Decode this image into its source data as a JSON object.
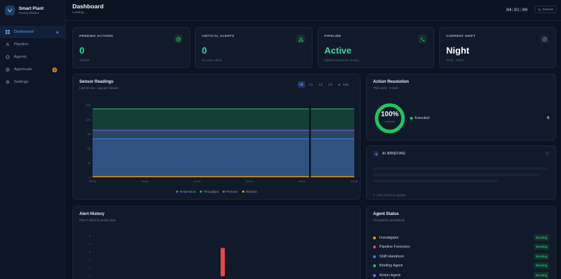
{
  "brand": {
    "name": "Smart Plant",
    "subtitle": "Factory Monitor"
  },
  "nav": [
    {
      "label": "Dashboard",
      "icon": "grid-icon",
      "active": true
    },
    {
      "label": "Pipeline",
      "icon": "pipeline-icon"
    },
    {
      "label": "Agents",
      "icon": "agents-icon"
    },
    {
      "label": "Approvals",
      "icon": "check-circle-icon",
      "badge": "3"
    },
    {
      "label": "Settings",
      "icon": "gear-icon"
    }
  ],
  "header": {
    "title": "Dashboard",
    "subtitle": "Loading...",
    "clock": "04:01:00",
    "refresh_label": "Refresh"
  },
  "stats": [
    {
      "label": "PENDING ACTIONS",
      "value": "0",
      "caption": "All clear",
      "color": "#3ad6a0",
      "icon": "clock-icon"
    },
    {
      "label": "CRITICAL ALERTS",
      "value": "0",
      "caption": "No active alerts",
      "color": "#3ad6a0",
      "icon": "warning-icon"
    },
    {
      "label": "PIPELINE",
      "value": "Active",
      "caption": "Pipeline connector running",
      "color": "#3ad6a0",
      "icon": "phone-icon"
    },
    {
      "label": "CURRENT SHIFT",
      "value": "Night",
      "caption": "22:00 - 06:00",
      "color": "#ffffff",
      "icon": "clock-icon"
    }
  ],
  "sensor": {
    "title": "Sensor Readings",
    "subtitle": "Last 60 min · avg per minute",
    "filters": [
      "All",
      "L1",
      "L2",
      "L3"
    ],
    "live_label": "Live"
  },
  "chart_data": {
    "type": "area",
    "x_ticks": [
      "03:00",
      "03:10",
      "03:20",
      "03:30",
      "03:40",
      "03:50"
    ],
    "y_ticks": [
      "0",
      "30",
      "60",
      "90",
      "120",
      "150"
    ],
    "ylim": [
      0,
      150
    ],
    "series": [
      {
        "name": "Temperature",
        "color": "#3b82f6",
        "values": [
          80,
          80,
          80,
          80,
          80,
          80,
          80,
          80,
          80,
          80,
          80,
          80,
          80,
          80,
          80,
          80,
          80,
          80,
          80,
          80,
          80,
          80,
          80,
          80,
          80,
          80,
          80,
          80,
          80,
          80,
          80,
          80,
          80,
          80,
          80,
          80,
          80,
          80,
          80,
          80,
          80,
          80,
          80,
          80,
          80,
          80,
          80,
          80,
          80,
          80,
          80,
          80,
          80,
          80,
          80,
          80,
          80,
          80,
          80,
          80
        ]
      },
      {
        "name": "Throughput",
        "color": "#22c55e",
        "values": [
          142,
          142,
          142,
          142,
          142,
          142,
          142,
          142,
          142,
          142,
          142,
          142,
          142,
          142,
          142,
          142,
          142,
          142,
          142,
          142,
          142,
          142,
          142,
          142,
          142,
          142,
          142,
          142,
          142,
          142,
          142,
          142,
          142,
          142,
          142,
          142,
          142,
          142,
          142,
          142,
          142,
          142,
          142,
          142,
          142,
          142,
          142,
          142,
          142,
          142,
          142,
          142,
          142,
          142,
          142,
          142,
          142,
          142,
          142,
          142
        ]
      },
      {
        "name": "Pressure",
        "color": "#8b5cf6",
        "values": [
          98,
          98,
          98,
          98,
          98,
          98,
          98,
          98,
          98,
          98,
          98,
          98,
          98,
          98,
          98,
          98,
          98,
          98,
          98,
          98,
          98,
          98,
          98,
          98,
          98,
          98,
          98,
          98,
          98,
          98,
          98,
          98,
          98,
          98,
          98,
          98,
          98,
          98,
          98,
          98,
          98,
          98,
          98,
          98,
          98,
          98,
          98,
          98,
          98,
          98,
          98,
          98,
          98,
          98,
          98,
          98,
          98,
          98,
          98,
          98
        ]
      },
      {
        "name": "Vibration",
        "color": "#f59e0b",
        "values": [
          2,
          2,
          2,
          2,
          2,
          2,
          2,
          2,
          2,
          2,
          2,
          2,
          2,
          2,
          2,
          2,
          2,
          2,
          2,
          2,
          2,
          2,
          2,
          2,
          2,
          2,
          2,
          2,
          2,
          2,
          2,
          2,
          2,
          2,
          2,
          2,
          2,
          2,
          2,
          2,
          2,
          2,
          2,
          2,
          2,
          2,
          2,
          2,
          2,
          2,
          2,
          2,
          2,
          2,
          2,
          2,
          2,
          2,
          2,
          2
        ]
      }
    ]
  },
  "resolution": {
    "title": "Action Resolution",
    "subtitle": "This week · 6 total",
    "percent": "100%",
    "ring_label": "resolved",
    "fraction": 1.0,
    "legend_label": "Executed",
    "legend_value": "6"
  },
  "briefing": {
    "title": "AI BRIEFING",
    "footer": "Click refresh to update"
  },
  "alert_history": {
    "title": "Alert History",
    "subtitle": "Past 7 shifts by action type",
    "y_ticks": [
      "5",
      "4",
      "3",
      "2",
      "1",
      "0"
    ],
    "bar_value": 3.5
  },
  "agents": {
    "title": "Agent Status",
    "subtitle": "All systems operational",
    "items": [
      {
        "name": "Investigator",
        "color": "#f59e0b",
        "status": "Running"
      },
      {
        "name": "Pipeline Forensics",
        "color": "#ef4444",
        "status": "Running"
      },
      {
        "name": "Shift Handover",
        "color": "#3b82f6",
        "status": "Running"
      },
      {
        "name": "Briefing Agent",
        "color": "#22c55e",
        "status": "Running"
      },
      {
        "name": "Action Agent",
        "color": "#8b5cf6",
        "status": "Running"
      }
    ]
  }
}
